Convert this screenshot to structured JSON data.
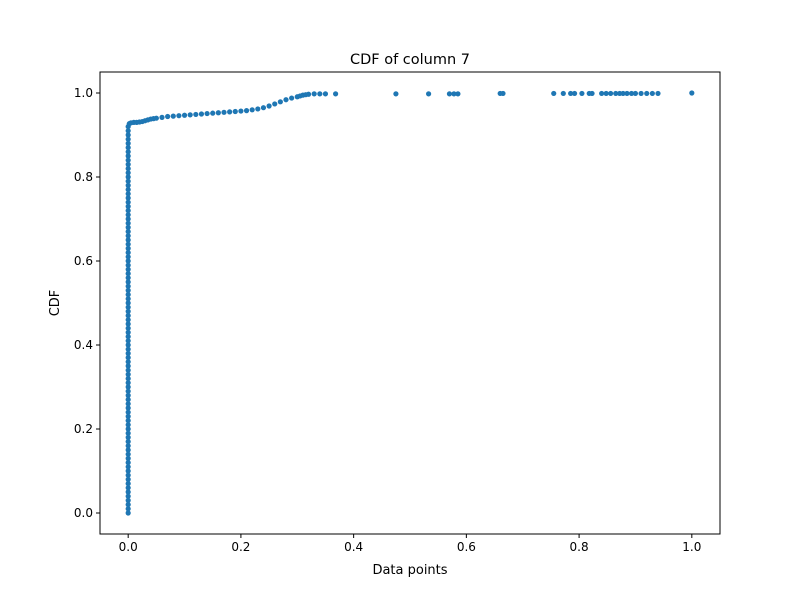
{
  "chart_data": {
    "type": "scatter",
    "title": "CDF of column 7",
    "xlabel": "Data points",
    "ylabel": "CDF",
    "xlim": [
      -0.05,
      1.05
    ],
    "ylim": [
      -0.05,
      1.05
    ],
    "xticks": [
      0.0,
      0.2,
      0.4,
      0.6,
      0.8,
      1.0
    ],
    "xtick_labels": [
      "0.0",
      "0.2",
      "0.4",
      "0.6",
      "0.8",
      "1.0"
    ],
    "yticks": [
      0.0,
      0.2,
      0.4,
      0.6,
      0.8,
      1.0
    ],
    "ytick_labels": [
      "0.0",
      "0.2",
      "0.4",
      "0.6",
      "0.8",
      "1.0"
    ],
    "grid": false,
    "legend": "none",
    "marker_color": "#1f77b4",
    "series": [
      {
        "x": [
          0,
          0,
          0,
          0,
          0,
          0,
          0,
          0,
          0,
          0,
          0,
          0,
          0,
          0,
          0,
          0,
          0,
          0,
          0,
          0,
          0,
          0,
          0,
          0,
          0,
          0,
          0,
          0,
          0,
          0,
          0,
          0,
          0,
          0,
          0,
          0,
          0,
          0,
          0,
          0,
          0,
          0,
          0,
          0,
          0,
          0,
          0,
          0,
          0,
          0,
          0,
          0,
          0,
          0,
          0,
          0,
          0,
          0,
          0,
          0,
          0,
          0,
          0,
          0,
          0,
          0,
          0,
          0,
          0,
          0,
          0,
          0,
          0,
          0,
          0,
          0,
          0,
          0,
          0,
          0,
          0,
          0,
          0,
          0,
          0,
          0,
          0,
          0,
          0,
          0,
          0,
          0,
          0,
          0.002,
          0.005,
          0.01,
          0.015,
          0.02,
          0.025,
          0.03,
          0.035,
          0.04,
          0.045,
          0.05,
          0.06,
          0.07,
          0.08,
          0.09,
          0.1,
          0.11,
          0.12,
          0.13,
          0.14,
          0.15,
          0.16,
          0.17,
          0.18,
          0.19,
          0.2,
          0.21,
          0.22,
          0.23,
          0.24,
          0.25,
          0.26,
          0.27,
          0.28,
          0.29,
          0.3,
          0.305,
          0.31,
          0.315,
          0.32,
          0.33,
          0.34,
          0.35,
          0.368,
          0.475,
          0.533,
          0.57,
          0.578,
          0.585,
          0.66,
          0.665,
          0.755,
          0.772,
          0.785,
          0.792,
          0.805,
          0.818,
          0.823,
          0.84,
          0.848,
          0.856,
          0.865,
          0.872,
          0.878,
          0.885,
          0.893,
          0.9,
          0.91,
          0.92,
          0.93,
          0.94,
          1.0
        ],
        "y": [
          0,
          0.01,
          0.02,
          0.03,
          0.04,
          0.05,
          0.06,
          0.07,
          0.08,
          0.09,
          0.1,
          0.11,
          0.12,
          0.13,
          0.14,
          0.15,
          0.16,
          0.17,
          0.18,
          0.19,
          0.2,
          0.21,
          0.22,
          0.23,
          0.24,
          0.25,
          0.26,
          0.27,
          0.28,
          0.29,
          0.3,
          0.31,
          0.32,
          0.33,
          0.34,
          0.35,
          0.36,
          0.37,
          0.38,
          0.39,
          0.4,
          0.41,
          0.42,
          0.43,
          0.44,
          0.45,
          0.46,
          0.47,
          0.48,
          0.49,
          0.5,
          0.51,
          0.52,
          0.53,
          0.54,
          0.55,
          0.56,
          0.57,
          0.58,
          0.59,
          0.6,
          0.61,
          0.62,
          0.63,
          0.64,
          0.65,
          0.66,
          0.67,
          0.68,
          0.69,
          0.7,
          0.71,
          0.72,
          0.73,
          0.74,
          0.75,
          0.76,
          0.77,
          0.78,
          0.79,
          0.8,
          0.81,
          0.82,
          0.83,
          0.84,
          0.85,
          0.86,
          0.87,
          0.88,
          0.89,
          0.9,
          0.91,
          0.92,
          0.927,
          0.929,
          0.93,
          0.93,
          0.931,
          0.932,
          0.934,
          0.936,
          0.938,
          0.939,
          0.94,
          0.942,
          0.944,
          0.945,
          0.946,
          0.947,
          0.948,
          0.949,
          0.95,
          0.951,
          0.952,
          0.953,
          0.954,
          0.955,
          0.956,
          0.957,
          0.958,
          0.96,
          0.962,
          0.965,
          0.969,
          0.974,
          0.979,
          0.984,
          0.988,
          0.991,
          0.993,
          0.995,
          0.996,
          0.997,
          0.998,
          0.998,
          0.998,
          0.998,
          0.998,
          0.998,
          0.998,
          0.998,
          0.998,
          0.999,
          0.999,
          0.999,
          0.999,
          0.999,
          0.999,
          0.999,
          0.999,
          0.999,
          0.999,
          0.999,
          0.999,
          0.999,
          0.999,
          0.999,
          0.999,
          0.999,
          0.999,
          0.999,
          0.999,
          0.999,
          0.999,
          1.0
        ]
      }
    ]
  }
}
